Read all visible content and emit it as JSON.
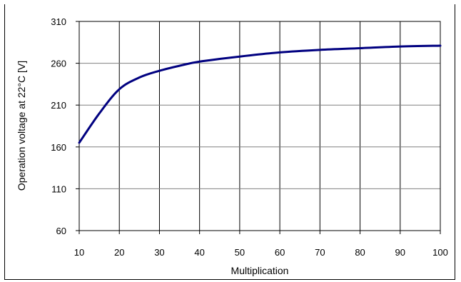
{
  "chart_data": {
    "type": "line",
    "title": "",
    "xlabel": "Multiplication",
    "ylabel": "Operation voltage at 22°C [V]",
    "xlim": [
      10,
      100
    ],
    "ylim": [
      60,
      310
    ],
    "x_ticks": [
      "10",
      "20",
      "30",
      "40",
      "50",
      "60",
      "70",
      "80",
      "90",
      "100"
    ],
    "y_ticks": [
      "60",
      "110",
      "160",
      "210",
      "260",
      "310"
    ],
    "grid": true,
    "legend": "none",
    "series": [
      {
        "color": "#000080",
        "x": [
          10,
          15,
          20,
          25,
          30,
          35,
          40,
          50,
          60,
          70,
          80,
          90,
          100
        ],
        "y": [
          165,
          200,
          229,
          243,
          251,
          257,
          262,
          268,
          273,
          276,
          278,
          280,
          281
        ]
      }
    ]
  }
}
